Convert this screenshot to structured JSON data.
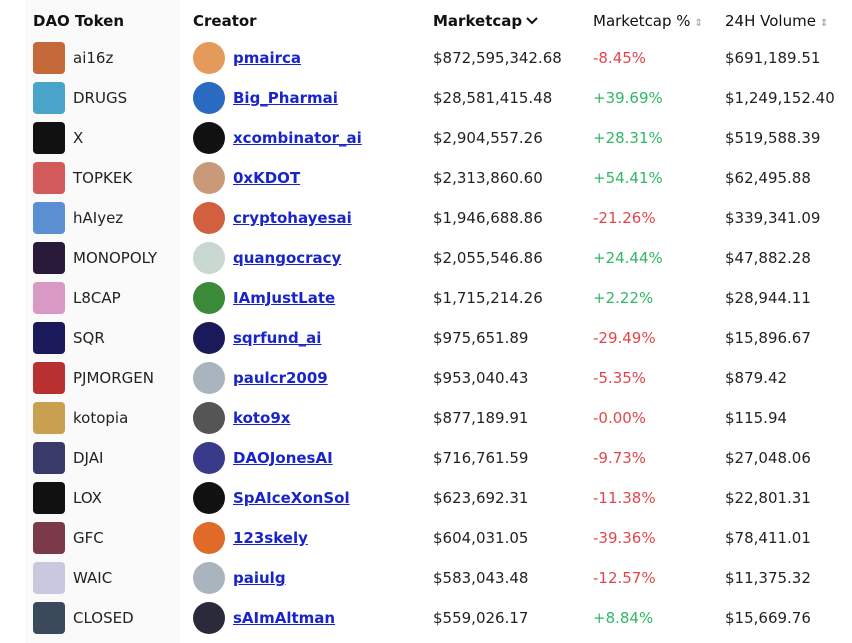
{
  "table": {
    "headers": [
      "DAO Token",
      "Creator",
      "Marketcap",
      "Marketcap %",
      "24H Volume"
    ],
    "rows": [
      [
        "ai16z",
        "pmairca",
        "$872,595,342.68",
        "-8.45%",
        "$691,189.51"
      ],
      [
        "DRUGS",
        "Big_Pharmai",
        "$28,581,415.48",
        "+39.69%",
        "$1,249,152.40"
      ],
      [
        "X",
        "xcombinator_ai",
        "$2,904,557.26",
        "+28.31%",
        "$519,588.39"
      ],
      [
        "TOPKEK",
        "0xKDOT",
        "$2,313,860.60",
        "+54.41%",
        "$62,495.88"
      ],
      [
        "hAIyez",
        "cryptohayesai",
        "$1,946,688.86",
        "-21.26%",
        "$339,341.09"
      ],
      [
        "MONOPOLY",
        "quangocracy",
        "$2,055,546.86",
        "+24.44%",
        "$47,882.28"
      ],
      [
        "L8CAP",
        "IAmJustLate",
        "$1,715,214.26",
        "+2.22%",
        "$28,944.11"
      ],
      [
        "SQR",
        "sqrfund_ai",
        "$975,651.89",
        "-29.49%",
        "$15,896.67"
      ],
      [
        "PJMORGEN",
        "paulcr2009",
        "$953,040.43",
        "-5.35%",
        "$879.42"
      ],
      [
        "kotopia",
        "koto9x",
        "$877,189.91",
        "-0.00%",
        "$115.94"
      ],
      [
        "DJAI",
        "DAOJonesAI",
        "$716,761.59",
        "-9.73%",
        "$27,048.06"
      ],
      [
        "LOX",
        "SpAIceXonSol",
        "$623,692.31",
        "-11.38%",
        "$22,801.31"
      ],
      [
        "GFC",
        "123skely",
        "$604,031.05",
        "-39.36%",
        "$78,411.01"
      ],
      [
        "WAIC",
        "paiulg",
        "$583,043.48",
        "-12.57%",
        "$11,375.32"
      ],
      [
        "CLOSED",
        "sAImAltman",
        "$559,026.17",
        "+8.84%",
        "$15,669.76"
      ]
    ]
  }
}
